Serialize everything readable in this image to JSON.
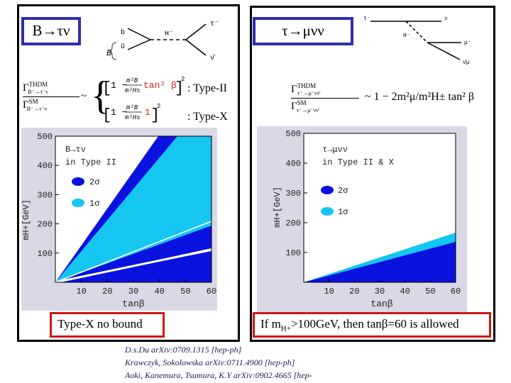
{
  "left_panel": {
    "title": "B→τν",
    "feynman": {
      "b": "b",
      "ubar": "ū",
      "H": "H⁻",
      "tau": "τ⁻",
      "nubar": "ν̄",
      "B": "B"
    },
    "equation": {
      "lhs_num": "Γ",
      "lhs_num_sup": "THDM",
      "lhs_num_sub": "B⁻→τ⁻ν",
      "lhs_den": "Γ",
      "lhs_den_sup": "SM",
      "lhs_den_sub": "B⁻→τ⁻ν",
      "row1": "1 − m²B/m²H± tan²β",
      "row1_red": "tan² β",
      "row2": "1 − m²B/m²H± 1",
      "row2_red": "1"
    },
    "type_ii_label": ": Type-II",
    "type_x_label": ": Type-X",
    "caption": "Type-X no bound"
  },
  "right_panel": {
    "title": "τ→μνν",
    "feynman": {
      "tau": "τ⁻",
      "H": "H⁻",
      "nu": "ν",
      "mu": "μ⁻",
      "nubar": "ν̄μ"
    },
    "equation": {
      "lhs_num": "Γ",
      "lhs_num_sup": "THDM",
      "lhs_num_sub": "τ⁻→μ⁻νν̄",
      "lhs_den": "Γ",
      "lhs_den_sup": "SM",
      "lhs_den_sub": "τ⁻→μ⁻νν̄",
      "rhs": "~ 1 − 2m²μ/m²H± tan² β"
    },
    "caption_prefix": "If m",
    "caption_sub": "H+",
    "caption_suffix": ">100GeV, then tanβ=60 is allowed"
  },
  "chart_data": [
    {
      "type": "area",
      "legend_title_line1": "B→τν",
      "legend_title_line2": "in Type II",
      "xlabel": "tanβ",
      "ylabel": "mH+[GeV]",
      "xlim": [
        0,
        60
      ],
      "ylim": [
        0,
        500
      ],
      "xticks": [
        "10",
        "20",
        "30",
        "40",
        "50",
        "60"
      ],
      "yticks": [
        "100",
        "200",
        "300",
        "400",
        "500"
      ],
      "series": [
        {
          "name": "2σ",
          "color": "#0a12e0"
        },
        {
          "name": "1σ",
          "color": "#14c6f0"
        }
      ]
    },
    {
      "type": "area",
      "legend_title_line1": "τ→μνν",
      "legend_title_line2": "in Type II & X",
      "xlabel": "tanβ",
      "ylabel": "mH+[GeV]",
      "xlim": [
        0,
        60
      ],
      "ylim": [
        0,
        500
      ],
      "xticks": [
        "10",
        "20",
        "30",
        "40",
        "50",
        "60"
      ],
      "yticks": [
        "100",
        "200",
        "300",
        "400",
        "500"
      ],
      "series": [
        {
          "name": "2σ",
          "color": "#0a12e0"
        },
        {
          "name": "1σ",
          "color": "#14c6f0"
        }
      ]
    }
  ],
  "references": [
    "D.s.Du arXiv:0709.1315 [hep-ph]",
    "Krawczyk, Sokolowska arXiv:0711.4900 [hep-ph]",
    "Aoki, Kanemura, Tsumura, K.Y arXiv:0902.4665 [hep-"
  ]
}
